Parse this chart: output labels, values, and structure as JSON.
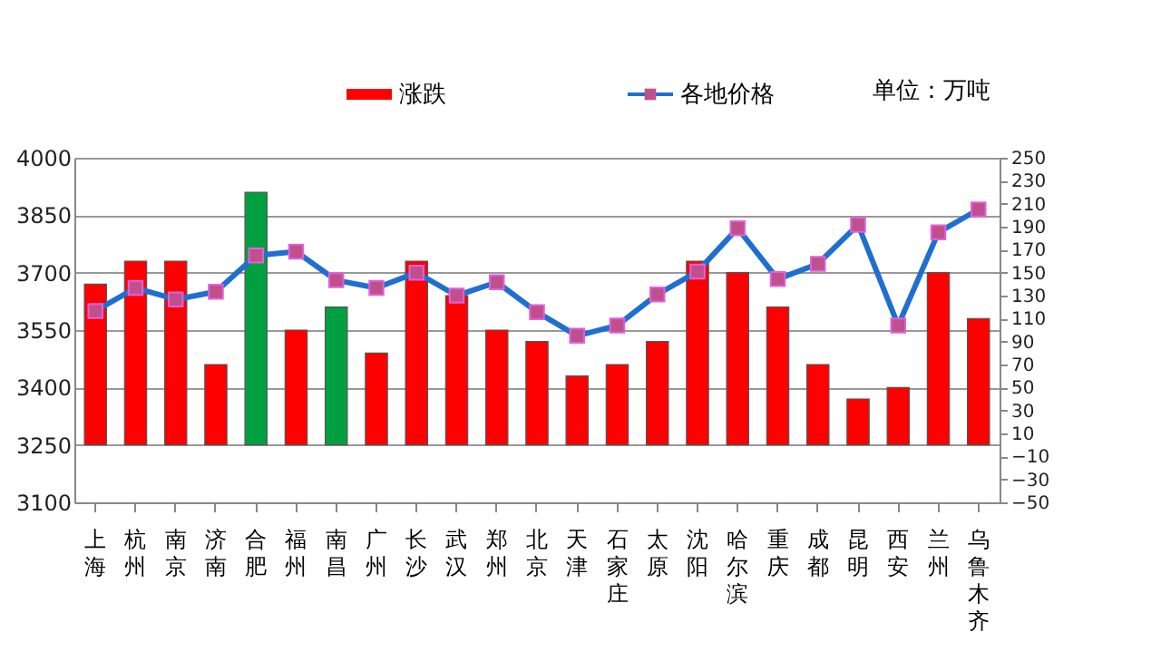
{
  "chart_data": {
    "type": "bar",
    "categories": [
      "上海",
      "杭州",
      "南京",
      "济南",
      "合肥",
      "福州",
      "南昌",
      "广州",
      "长沙",
      "武汉",
      "郑州",
      "北京",
      "天津",
      "石家庄",
      "太原",
      "沈阳",
      "哈尔滨",
      "重庆",
      "成都",
      "昆明",
      "西安",
      "兰州",
      "乌鲁木齐"
    ],
    "series": [
      {
        "name": "涨跌",
        "axis": "y2",
        "color": "#ff0000",
        "colors": [
          "#ff0000",
          "#ff0000",
          "#ff0000",
          "#ff0000",
          "#00a040",
          "#ff0000",
          "#00a040",
          "#ff0000",
          "#ff0000",
          "#ff0000",
          "#ff0000",
          "#ff0000",
          "#ff0000",
          "#ff0000",
          "#ff0000",
          "#ff0000",
          "#ff0000",
          "#ff0000",
          "#ff0000",
          "#ff0000",
          "#ff0000",
          "#ff0000",
          "#ff0000"
        ],
        "values": [
          140,
          160,
          160,
          70,
          220,
          100,
          120,
          80,
          160,
          130,
          100,
          90,
          60,
          70,
          90,
          160,
          150,
          120,
          70,
          40,
          50,
          150,
          110
        ]
      },
      {
        "name": "各地价格",
        "type": "line",
        "axis": "y",
        "color": "#1f6fd0",
        "marker": "square",
        "values": [
          3600,
          3660,
          3630,
          3650,
          3745,
          3755,
          3680,
          3660,
          3700,
          3640,
          3675,
          3597,
          3535,
          3562,
          3643,
          3703,
          3816,
          3683,
          3723,
          3825,
          3562,
          3805,
          3865
        ]
      }
    ],
    "ylim": [
      3100,
      4000
    ],
    "yticks": [
      3100,
      3250,
      3400,
      3550,
      3700,
      3850,
      4000
    ],
    "y2lim": [
      -50,
      250
    ],
    "y2ticks": [
      -50,
      -30,
      -10,
      10,
      30,
      50,
      70,
      90,
      110,
      130,
      150,
      170,
      190,
      210,
      230,
      250
    ],
    "grid": "y",
    "legend": "top",
    "annotations": [
      "单位：万吨"
    ]
  }
}
